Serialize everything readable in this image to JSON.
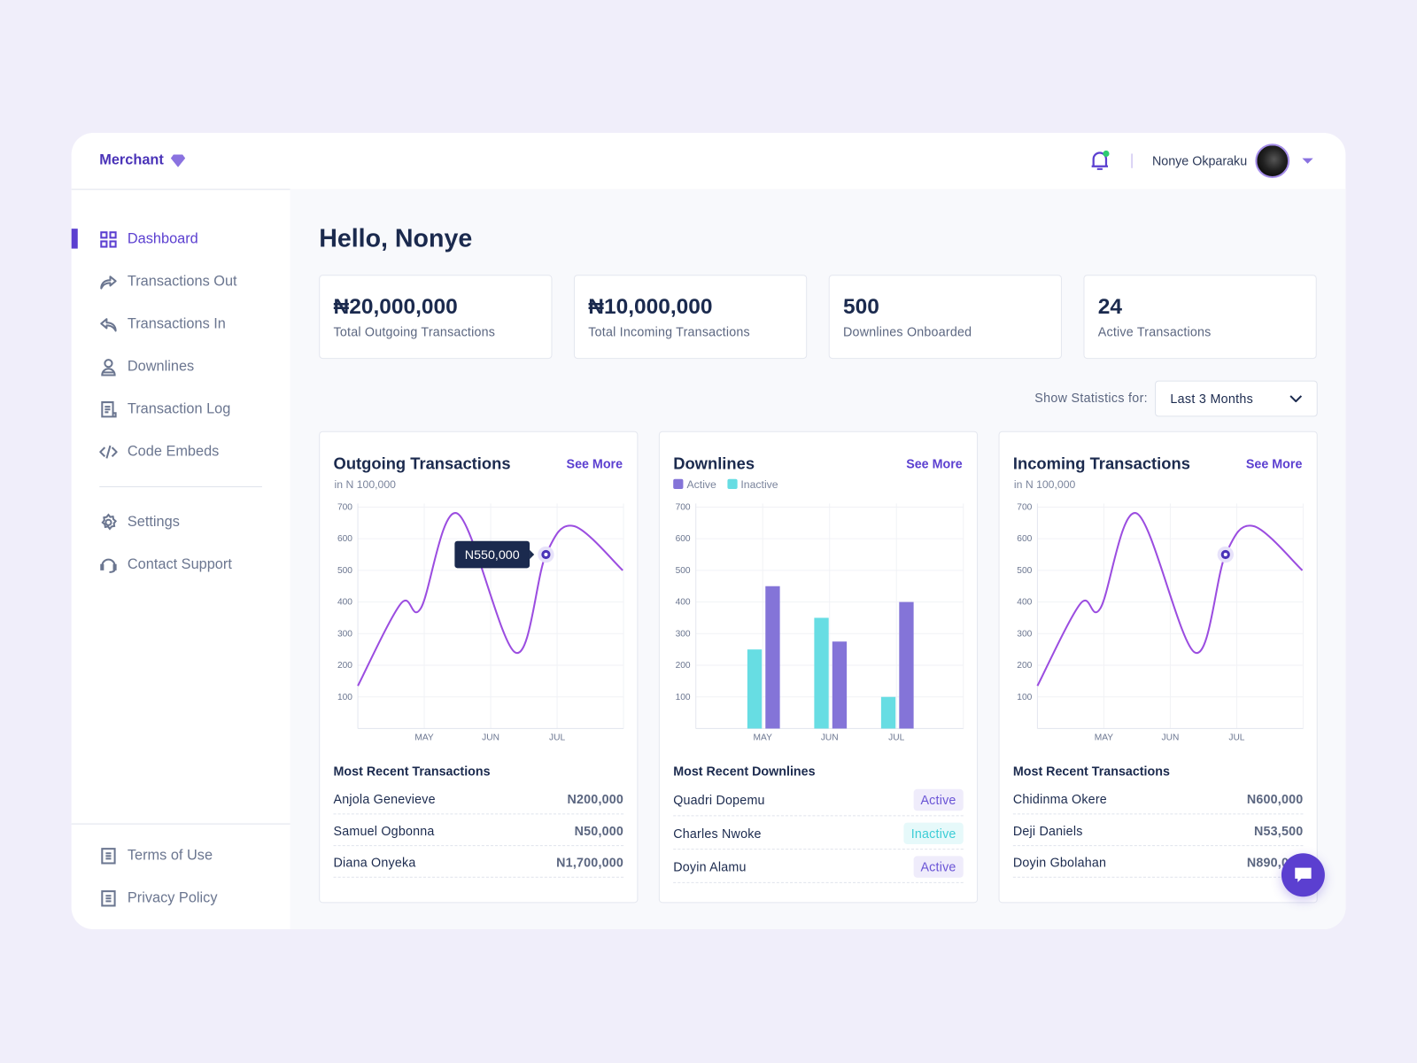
{
  "brand": {
    "name": "Merchant",
    "icon": "diamond-icon"
  },
  "header": {
    "user_name": "Nonye Okparaku",
    "notification_dot_color": "#2ecc71"
  },
  "sidebar": {
    "items": [
      {
        "label": "Dashboard",
        "icon": "grid-icon",
        "active": true
      },
      {
        "label": "Transactions Out",
        "icon": "share-arrow-icon"
      },
      {
        "label": "Transactions In",
        "icon": "reply-arrow-icon"
      },
      {
        "label": "Downlines",
        "icon": "user-icon"
      },
      {
        "label": "Transaction Log",
        "icon": "document-icon"
      },
      {
        "label": "Code Embeds",
        "icon": "code-icon"
      }
    ],
    "secondary": [
      {
        "label": "Settings",
        "icon": "gear-icon"
      },
      {
        "label": "Contact Support",
        "icon": "headset-icon"
      }
    ],
    "footer": [
      {
        "label": "Terms of Use",
        "icon": "document-icon"
      },
      {
        "label": "Privacy Policy",
        "icon": "document-icon"
      }
    ]
  },
  "greeting": "Hello, Nonye",
  "stats": [
    {
      "value": "₦20,000,000",
      "label": "Total Outgoing Transactions"
    },
    {
      "value": "₦10,000,000",
      "label": "Total Incoming Transactions"
    },
    {
      "value": "500",
      "label": "Downlines Onboarded"
    },
    {
      "value": "24",
      "label": "Active Transactions"
    }
  ],
  "filter": {
    "label": "Show Statistics for:",
    "selected": "Last 3 Months"
  },
  "colors": {
    "accent": "#5b3fd0",
    "line": "#9b4de0",
    "active": "#8474d8",
    "inactive": "#67dde3",
    "navy": "#1b2a4e"
  },
  "cards": [
    {
      "title": "Outgoing Transactions",
      "subtitle": "in N 100,000",
      "see_more": "See More",
      "list_title": "Most Recent Transactions",
      "rows": [
        {
          "name": "Anjola Genevieve",
          "value": "N200,000"
        },
        {
          "name": "Samuel Ogbonna",
          "value": "N50,000"
        },
        {
          "name": "Diana Onyeka",
          "value": "N1,700,000"
        }
      ]
    },
    {
      "title": "Downlines",
      "see_more": "See More",
      "legend": [
        "Active",
        "Inactive"
      ],
      "list_title": "Most Recent Downlines",
      "rows": [
        {
          "name": "Quadri Dopemu",
          "status": "Active"
        },
        {
          "name": "Charles Nwoke",
          "status": "Inactive"
        },
        {
          "name": "Doyin Alamu",
          "status": "Active"
        }
      ]
    },
    {
      "title": "Incoming Transactions",
      "subtitle": "in N 100,000",
      "see_more": "See More",
      "list_title": "Most Recent Transactions",
      "rows": [
        {
          "name": "Chidinma Okere",
          "value": "N600,000"
        },
        {
          "name": "Deji Daniels",
          "value": "N53,500"
        },
        {
          "name": "Doyin Gbolahan",
          "value": "N890,000"
        }
      ]
    }
  ],
  "chart_data": [
    {
      "type": "line",
      "title": "Outgoing Transactions",
      "subtitle": "in N 100,000",
      "categories": [
        "MAY",
        "JUN",
        "JUL"
      ],
      "yticks": [
        100,
        200,
        300,
        400,
        500,
        600,
        700
      ],
      "ylim": [
        0,
        800
      ],
      "grid": true,
      "points": [
        [
          0,
          135
        ],
        [
          0.65,
          395
        ],
        [
          0.95,
          380
        ],
        [
          1.5,
          680
        ],
        [
          2.38,
          240
        ],
        [
          2.84,
          550
        ],
        [
          3.26,
          640
        ],
        [
          4,
          500
        ]
      ],
      "highlight": {
        "x": 2.84,
        "y": 550,
        "label": "N550,000"
      }
    },
    {
      "type": "bar",
      "title": "Downlines",
      "categories": [
        "MAY",
        "JUN",
        "JUL"
      ],
      "yticks": [
        100,
        200,
        300,
        400,
        500,
        600,
        700
      ],
      "ylim": [
        0,
        800
      ],
      "grid": true,
      "legend": "top-left",
      "series": [
        {
          "name": "Inactive",
          "values": [
            250,
            350,
            100
          ]
        },
        {
          "name": "Active",
          "values": [
            450,
            275,
            400
          ]
        }
      ]
    },
    {
      "type": "line",
      "title": "Incoming Transactions",
      "subtitle": "in N 100,000",
      "categories": [
        "MAY",
        "JUN",
        "JUL"
      ],
      "yticks": [
        100,
        200,
        300,
        400,
        500,
        600,
        700
      ],
      "ylim": [
        0,
        800
      ],
      "grid": true,
      "points": [
        [
          0,
          135
        ],
        [
          0.65,
          395
        ],
        [
          0.95,
          380
        ],
        [
          1.5,
          680
        ],
        [
          2.38,
          240
        ],
        [
          2.84,
          550
        ],
        [
          3.26,
          640
        ],
        [
          4,
          500
        ]
      ],
      "highlight": {
        "x": 2.84,
        "y": 550
      }
    }
  ]
}
